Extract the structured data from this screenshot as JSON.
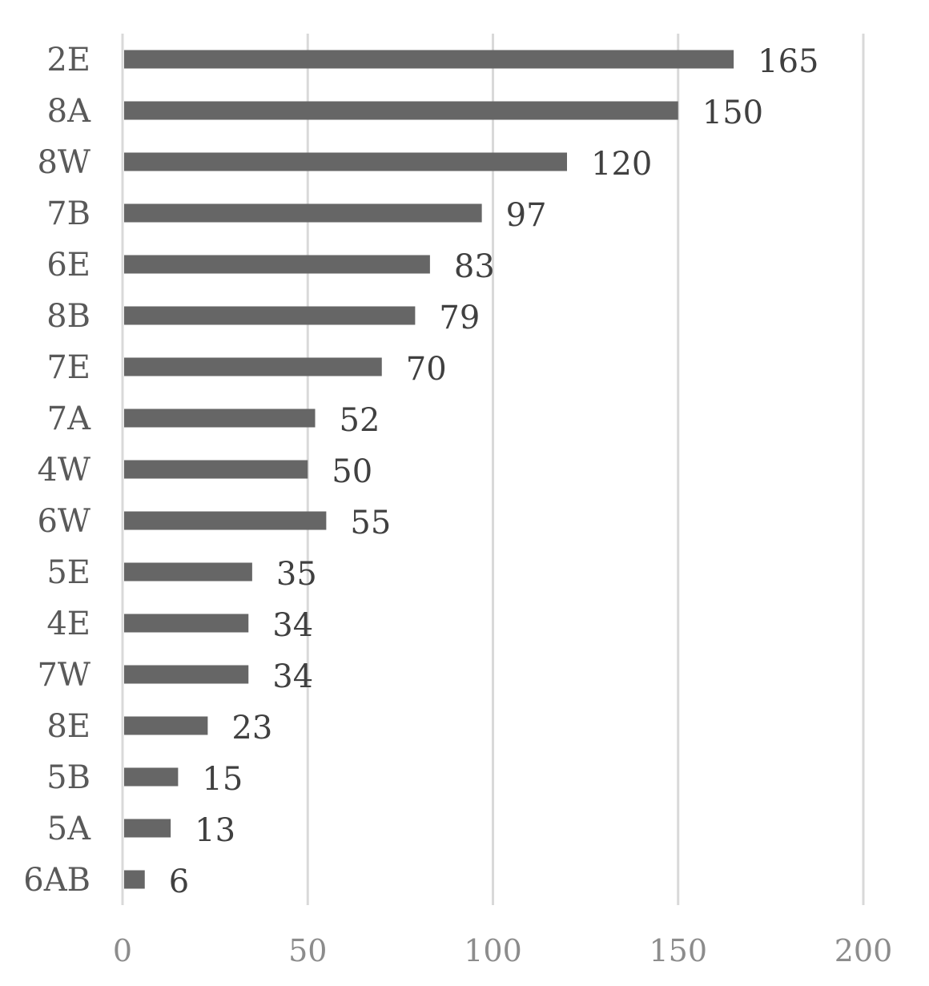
{
  "chart_data": {
    "type": "bar",
    "orientation": "horizontal",
    "title": "",
    "xlabel": "",
    "ylabel": "",
    "categories": [
      "2E",
      "8A",
      "8W",
      "7B",
      "6E",
      "8B",
      "7E",
      "7A",
      "4W",
      "6W",
      "5E",
      "4E",
      "7W",
      "8E",
      "5B",
      "5A",
      "6AB"
    ],
    "values": [
      165,
      150,
      120,
      97,
      83,
      79,
      70,
      52,
      50,
      55,
      35,
      34,
      34,
      23,
      15,
      13,
      6
    ],
    "value_labels": [
      "165",
      "150",
      "120",
      "97",
      "83",
      "79",
      "70",
      "52",
      "50",
      "55",
      "35",
      "34",
      "34",
      "23",
      "15",
      "13",
      "6"
    ],
    "xlim": [
      0,
      200
    ],
    "x_ticks": [
      0,
      50,
      100,
      150,
      200
    ],
    "x_tick_labels": [
      "0",
      "50",
      "100",
      "150",
      "200"
    ],
    "grid": "vertical",
    "legend": "none",
    "colors": {
      "bar": "#666666",
      "grid": "#d9d9d9",
      "label_text": "#595959",
      "value_text": "#404040",
      "tick_text": "#8c8c8c"
    }
  }
}
